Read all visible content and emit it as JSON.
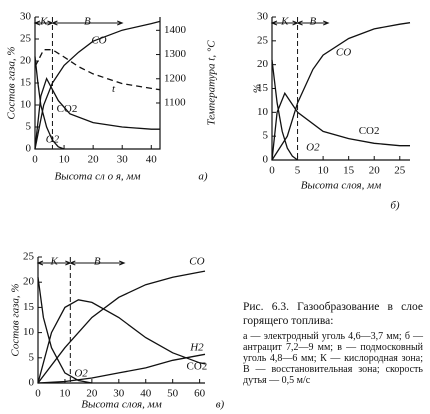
{
  "chart_data": [
    {
      "type": "line",
      "panel": "а)",
      "xlabel": "Высота сл о я, мм",
      "ylabel": "Состав газа, %",
      "y2label": "Температура t, °C",
      "xlim": [
        0,
        43
      ],
      "xticks": [
        0,
        10,
        20,
        30,
        40
      ],
      "ylim": [
        0,
        30
      ],
      "yticks": [
        0,
        5,
        10,
        15,
        20,
        25,
        30
      ],
      "y2lim": [
        910,
        1455
      ],
      "y2ticks": [
        1100,
        1200,
        1300,
        1400
      ],
      "zones": [
        {
          "label": "К",
          "from": 0,
          "to": 6
        },
        {
          "label": "В",
          "from": 6,
          "to": 30
        }
      ],
      "series": [
        {
          "name": "CO",
          "color": "#111",
          "x": [
            0,
            3,
            6,
            10,
            15,
            20,
            30,
            40,
            43
          ],
          "values": [
            0,
            10,
            15,
            19,
            22,
            24.5,
            27,
            28.5,
            29
          ]
        },
        {
          "name": "CO2",
          "color": "#111",
          "x": [
            0,
            2,
            4,
            6,
            8,
            12,
            20,
            30,
            40,
            43
          ],
          "values": [
            0,
            12,
            16,
            13.5,
            11,
            8,
            6,
            5,
            4.5,
            4.5
          ]
        },
        {
          "name": "O2",
          "color": "#111",
          "x": [
            0,
            1,
            2,
            4,
            6,
            8,
            10
          ],
          "values": [
            21,
            15,
            10,
            5,
            2,
            0.5,
            0
          ]
        },
        {
          "name": "t",
          "color": "#111",
          "axis": "y2",
          "line_style": "dashed",
          "x": [
            0,
            3,
            6,
            10,
            15,
            20,
            30,
            40,
            43
          ],
          "values": [
            1250,
            1320,
            1320,
            1290,
            1250,
            1220,
            1180,
            1160,
            1155
          ]
        }
      ]
    },
    {
      "type": "line",
      "panel": "б)",
      "xlabel": "Высота слоя, мм",
      "ylabel": "%",
      "xlim": [
        0,
        27
      ],
      "xticks": [
        0,
        5,
        10,
        15,
        20,
        25
      ],
      "ylim": [
        0,
        30
      ],
      "yticks": [
        0,
        5,
        10,
        15,
        20,
        25,
        30
      ],
      "zones": [
        {
          "label": "К",
          "from": 0,
          "to": 5
        },
        {
          "label": "В",
          "from": 5,
          "to": 11
        }
      ],
      "series": [
        {
          "name": "CO",
          "color": "#111",
          "x": [
            0,
            3,
            5,
            8,
            10,
            15,
            20,
            25,
            27
          ],
          "values": [
            0,
            5,
            12,
            19,
            22,
            25.5,
            27.5,
            28.5,
            28.8
          ]
        },
        {
          "name": "CO2",
          "color": "#111",
          "x": [
            0,
            1,
            2.5,
            5,
            10,
            15,
            20,
            25,
            27
          ],
          "values": [
            0,
            10,
            14,
            10,
            6,
            4.5,
            3.5,
            3,
            3
          ]
        },
        {
          "name": "O2",
          "color": "#111",
          "x": [
            0,
            1,
            2,
            3,
            4,
            5
          ],
          "values": [
            21,
            12,
            6,
            2.5,
            0.8,
            0
          ]
        }
      ]
    },
    {
      "type": "line",
      "panel": "в)",
      "xlabel": "Высота слоя, мм",
      "ylabel": "Состав газа, %",
      "xlim": [
        0,
        62
      ],
      "xticks": [
        0,
        10,
        20,
        30,
        40,
        50,
        60
      ],
      "ylim": [
        0,
        25
      ],
      "yticks": [
        0,
        5,
        10,
        15,
        20,
        25
      ],
      "zones": [
        {
          "label": "К",
          "from": 0,
          "to": 12
        },
        {
          "label": "В",
          "from": 12,
          "to": 32
        }
      ],
      "series": [
        {
          "name": "CO",
          "color": "#111",
          "x": [
            0,
            10,
            20,
            30,
            40,
            50,
            60,
            62
          ],
          "values": [
            0,
            7,
            13,
            17,
            19.5,
            21,
            22,
            22.2
          ]
        },
        {
          "name": "CO2",
          "color": "#111",
          "x": [
            0,
            5,
            10,
            15,
            20,
            30,
            40,
            50,
            60,
            62
          ],
          "values": [
            0,
            10,
            15,
            16.5,
            16,
            13,
            9,
            6,
            4,
            3.8
          ]
        },
        {
          "name": "O2",
          "color": "#111",
          "x": [
            0,
            2,
            5,
            10,
            15,
            20
          ],
          "values": [
            21,
            13,
            7,
            2,
            0.5,
            0
          ]
        },
        {
          "name": "H2",
          "color": "#111",
          "x": [
            0,
            10,
            20,
            30,
            40,
            50,
            60,
            62
          ],
          "values": [
            0,
            0.3,
            1,
            2,
            3,
            4.5,
            5.5,
            5.7
          ]
        }
      ]
    }
  ],
  "caption": {
    "title": "Рис. 6.3. Газообразование в слое горящего топлива:",
    "items": [
      "а — электродный уголь 4,6—3,7 мм;",
      "б — антрацит 7,2—9 мм;",
      "в — подмосковный уголь 4,8—6 мм;",
      "К — кислородная зона;",
      "В — восстановительная зона;",
      "скорость дутья — 0,5 м/с"
    ]
  }
}
